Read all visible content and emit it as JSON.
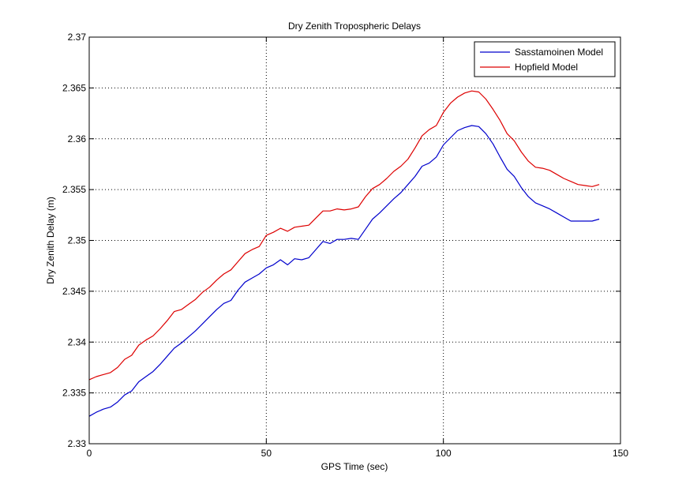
{
  "chart_data": {
    "type": "line",
    "title": "Dry Zenith Tropospheric Delays",
    "xlabel": "GPS Time (sec)",
    "ylabel": "Dry Zenith Delay (m)",
    "xlim": [
      0,
      150
    ],
    "ylim": [
      2.33,
      2.37
    ],
    "xticks": [
      0,
      50,
      100,
      150
    ],
    "yticks": [
      2.33,
      2.335,
      2.34,
      2.345,
      2.35,
      2.355,
      2.36,
      2.365,
      2.37
    ],
    "xtick_labels": [
      "0",
      "50",
      "100",
      "150"
    ],
    "ytick_labels": [
      "2.33",
      "2.335",
      "2.34",
      "2.345",
      "2.35",
      "2.355",
      "2.36",
      "2.365",
      "2.37"
    ],
    "grid": true,
    "legend_position": "top-right",
    "series": [
      {
        "name": "Sasstamoinen Model",
        "color": "#0000cc",
        "x": [
          0,
          2,
          4,
          6,
          8,
          10,
          12,
          14,
          16,
          18,
          20,
          22,
          24,
          26,
          28,
          30,
          32,
          34,
          36,
          38,
          40,
          42,
          44,
          46,
          48,
          50,
          52,
          54,
          56,
          58,
          60,
          62,
          64,
          66,
          68,
          70,
          72,
          74,
          76,
          78,
          80,
          82,
          84,
          86,
          88,
          90,
          92,
          94,
          96,
          98,
          100,
          102,
          104,
          106,
          108,
          110,
          112,
          114,
          116,
          118,
          120,
          122,
          124,
          126,
          128,
          130,
          132,
          134,
          136,
          138,
          140,
          142,
          144
        ],
        "y": [
          2.3327,
          2.3331,
          2.3334,
          2.3336,
          2.3341,
          2.3348,
          2.3352,
          2.3361,
          2.3366,
          2.3371,
          2.3378,
          2.3386,
          2.3394,
          2.3399,
          2.3405,
          2.3411,
          2.3418,
          2.3425,
          2.3432,
          2.3438,
          2.3441,
          2.3451,
          2.3459,
          2.3463,
          2.3467,
          2.3473,
          2.3476,
          2.3481,
          2.3476,
          2.3482,
          2.3481,
          2.3483,
          2.3491,
          2.3499,
          2.3497,
          2.3501,
          2.3501,
          2.3502,
          2.3501,
          2.3511,
          2.3521,
          2.3527,
          2.3534,
          2.3541,
          2.3547,
          2.3555,
          2.3563,
          2.3573,
          2.3576,
          2.3582,
          2.3594,
          2.3601,
          2.3608,
          2.3611,
          2.3613,
          2.3612,
          2.3605,
          2.3595,
          2.3582,
          2.357,
          2.3563,
          2.3552,
          2.3543,
          2.3537,
          2.3534,
          2.3531,
          2.3527,
          2.3523,
          2.3519,
          2.3519,
          2.3519,
          2.3519,
          2.3521
        ]
      },
      {
        "name": "Hopfield Model",
        "color": "#dd0000",
        "x": [
          0,
          2,
          4,
          6,
          8,
          10,
          12,
          14,
          16,
          18,
          20,
          22,
          24,
          26,
          28,
          30,
          32,
          34,
          36,
          38,
          40,
          42,
          44,
          46,
          48,
          50,
          52,
          54,
          56,
          58,
          60,
          62,
          64,
          66,
          68,
          70,
          72,
          74,
          76,
          78,
          80,
          82,
          84,
          86,
          88,
          90,
          92,
          94,
          96,
          98,
          100,
          102,
          104,
          106,
          108,
          110,
          112,
          114,
          116,
          118,
          120,
          122,
          124,
          126,
          128,
          130,
          132,
          134,
          136,
          138,
          140,
          142,
          144
        ],
        "y": [
          2.3363,
          2.3366,
          2.3368,
          2.337,
          2.3375,
          2.3383,
          2.3387,
          2.3397,
          2.3402,
          2.3406,
          2.3413,
          2.3421,
          2.343,
          2.3432,
          2.3437,
          2.3442,
          2.3449,
          2.3454,
          2.3461,
          2.3467,
          2.3471,
          2.3479,
          2.3487,
          2.3491,
          2.3494,
          2.3505,
          2.3508,
          2.3512,
          2.3509,
          2.3513,
          2.3514,
          2.3515,
          2.3522,
          2.3529,
          2.3529,
          2.3531,
          2.353,
          2.3531,
          2.3533,
          2.3543,
          2.3551,
          2.3555,
          2.3561,
          2.3568,
          2.3573,
          2.358,
          2.3591,
          2.3603,
          2.3609,
          2.3613,
          2.3626,
          2.3635,
          2.3641,
          2.3645,
          2.3647,
          2.3646,
          2.3639,
          2.3629,
          2.3618,
          2.3605,
          2.3598,
          2.3587,
          2.3578,
          2.3572,
          2.3571,
          2.3569,
          2.3565,
          2.3561,
          2.3558,
          2.3555,
          2.3554,
          2.3553,
          2.3555
        ]
      }
    ]
  }
}
